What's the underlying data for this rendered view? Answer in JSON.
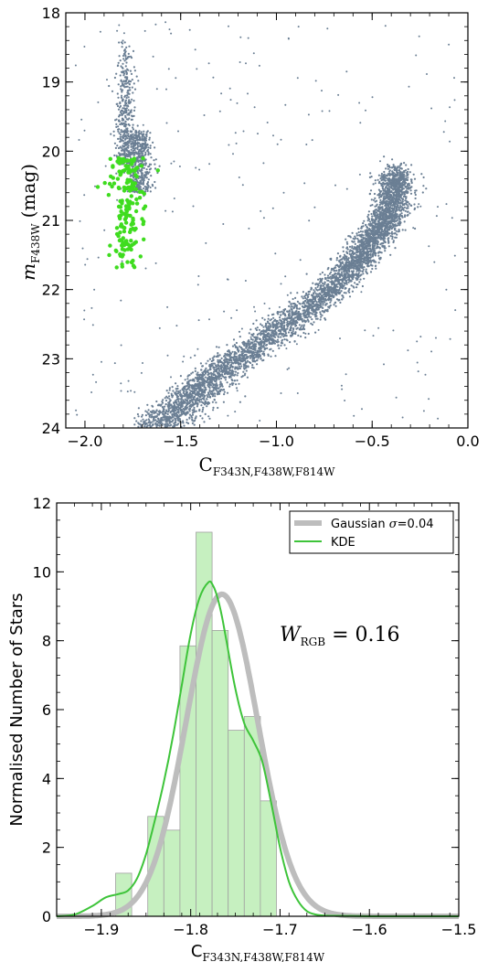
{
  "chart_data": [
    {
      "type": "scatter",
      "title": "",
      "xlabel_main": "C",
      "xlabel_sub": "F343N,F438W,F814W",
      "ylabel_main": "m",
      "ylabel_sub": "F438W",
      "ylabel_unit": "(mag)",
      "xlim": [
        -2.1,
        0.0
      ],
      "ylim": [
        24,
        18
      ],
      "y_inverted": true,
      "xticks": [
        -2.0,
        -1.5,
        -1.0,
        -0.5,
        0.0
      ],
      "xtick_labels": [
        "−2.0",
        "−1.5",
        "−1.0",
        "−0.5",
        "0.0"
      ],
      "yticks": [
        18,
        19,
        20,
        21,
        22,
        23,
        24
      ],
      "ytick_labels": [
        "18",
        "19",
        "20",
        "21",
        "22",
        "23",
        "24"
      ],
      "series": [
        {
          "role": "all stars",
          "color": "#6b7f94",
          "ridge": [
            [
              -1.62,
              24.0
            ],
            [
              -1.45,
              23.55
            ],
            [
              -1.3,
              23.2
            ],
            [
              -1.15,
              22.9
            ],
            [
              -1.0,
              22.6
            ],
            [
              -0.85,
              22.3
            ],
            [
              -0.72,
              22.0
            ],
            [
              -0.6,
              21.65
            ],
            [
              -0.5,
              21.3
            ],
            [
              -0.42,
              20.95
            ],
            [
              -0.38,
              20.6
            ],
            [
              -0.37,
              20.3
            ]
          ],
          "rgb_clump": {
            "color_center": -1.72,
            "mag_range": [
              19.7,
              20.6
            ]
          },
          "vertical_branch": {
            "color_center": -1.79,
            "mag_range": [
              18.4,
              20.2
            ]
          }
        },
        {
          "role": "selected RGB stars",
          "color": "#3fdc1f",
          "color_center": -1.78,
          "color_sigma": 0.045,
          "mag_range": [
            20.1,
            21.7
          ]
        }
      ]
    },
    {
      "type": "bar",
      "title": "",
      "xlabel_main": "C",
      "xlabel_sub": "F343N,F438W,F814W",
      "ylabel": "Normalised Number of Stars",
      "xlim": [
        -1.95,
        -1.5
      ],
      "ylim": [
        0,
        12
      ],
      "xticks": [
        -1.9,
        -1.8,
        -1.7,
        -1.6,
        -1.5
      ],
      "xtick_labels": [
        "−1.9",
        "−1.8",
        "−1.7",
        "−1.6",
        "−1.5"
      ],
      "yticks": [
        0,
        2,
        4,
        6,
        8,
        10,
        12
      ],
      "ytick_labels": [
        "0",
        "2",
        "4",
        "6",
        "8",
        "10",
        "12"
      ],
      "bin_edges": [
        -1.884,
        -1.866,
        -1.848,
        -1.83,
        -1.812,
        -1.794,
        -1.776,
        -1.758,
        -1.74,
        -1.722,
        -1.704
      ],
      "values": [
        1.25,
        0.0,
        2.9,
        2.5,
        7.85,
        11.15,
        8.3,
        5.4,
        5.8,
        3.35
      ],
      "bar_color": "#c6f0c0",
      "gaussian": {
        "mean": -1.765,
        "sigma": 0.04,
        "peak": 9.35,
        "color": "#bdbdbd"
      },
      "kde": {
        "color": "#3ec43a",
        "x": [
          -1.95,
          -1.93,
          -1.91,
          -1.895,
          -1.88,
          -1.87,
          -1.86,
          -1.85,
          -1.84,
          -1.83,
          -1.82,
          -1.81,
          -1.8,
          -1.79,
          -1.78,
          -1.775,
          -1.77,
          -1.765,
          -1.76,
          -1.75,
          -1.74,
          -1.73,
          -1.72,
          -1.71,
          -1.7,
          -1.69,
          -1.68,
          -1.67,
          -1.66,
          -1.65,
          -1.63,
          -1.6,
          -1.55,
          -1.5
        ],
        "y": [
          0.0,
          0.05,
          0.3,
          0.55,
          0.65,
          0.75,
          1.1,
          1.8,
          2.8,
          3.9,
          5.2,
          6.7,
          8.2,
          9.25,
          9.7,
          9.6,
          9.25,
          8.7,
          8.0,
          6.6,
          5.6,
          5.1,
          4.5,
          3.3,
          2.0,
          1.0,
          0.45,
          0.15,
          0.05,
          0.02,
          0.01,
          0.0,
          0.0,
          0.0
        ]
      },
      "legend": [
        {
          "label_pre": "Gaussian ",
          "label_sym": "σ",
          "label_post": "=0.04",
          "color": "#bdbdbd"
        },
        {
          "label_pre": "KDE",
          "label_sym": "",
          "label_post": "",
          "color": "#3ec43a"
        }
      ],
      "legend_position": "top-right",
      "annotation": {
        "main": "W",
        "sub": "RGB",
        "rest": " = 0.16"
      }
    }
  ]
}
